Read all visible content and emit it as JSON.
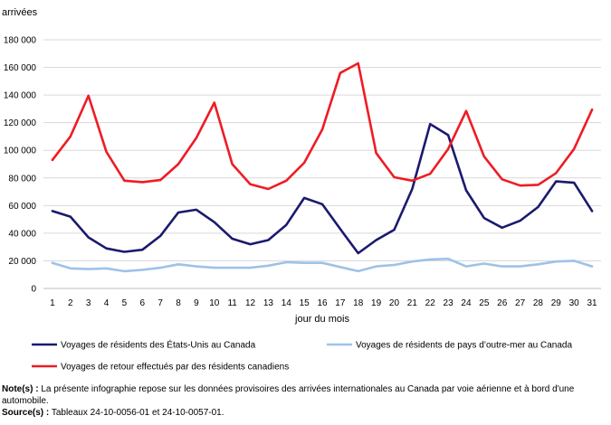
{
  "chart_data": {
    "type": "line",
    "ylabel": "arrivées",
    "xlabel": "jour du mois",
    "x": [
      1,
      2,
      3,
      4,
      5,
      6,
      7,
      8,
      9,
      10,
      11,
      12,
      13,
      14,
      15,
      16,
      17,
      18,
      19,
      20,
      21,
      22,
      23,
      24,
      25,
      26,
      27,
      28,
      29,
      30,
      31
    ],
    "ylim": [
      0,
      180000
    ],
    "yticks": [
      0,
      20000,
      40000,
      60000,
      80000,
      100000,
      120000,
      140000,
      160000,
      180000
    ],
    "ytick_labels": [
      "0",
      "20 000",
      "40 000",
      "60 000",
      "80 000",
      "100 000",
      "120 000",
      "140 000",
      "160 000",
      "180 000"
    ],
    "grid": true,
    "legend_position": "bottom",
    "series": [
      {
        "name": "Voyages de résidents des États-Unis au Canada",
        "color": "#1a1a6e",
        "values": [
          56000,
          52000,
          37000,
          29000,
          26500,
          28000,
          38000,
          55000,
          57000,
          48000,
          36000,
          32000,
          35000,
          46000,
          65500,
          61000,
          43000,
          25500,
          35000,
          42500,
          72000,
          119000,
          111000,
          71000,
          51000,
          44000,
          49000,
          59000,
          77500,
          76500,
          56000
        ]
      },
      {
        "name": "Voyages de résidents de pays d’outre-mer au Canada",
        "color": "#9dc3e6",
        "values": [
          18500,
          14500,
          14000,
          14500,
          12500,
          13500,
          15000,
          17500,
          16000,
          15000,
          15000,
          15000,
          16500,
          19000,
          18500,
          18500,
          15500,
          12500,
          16000,
          17000,
          19500,
          21000,
          21500,
          16000,
          18000,
          16000,
          16000,
          17500,
          19500,
          20000,
          16000
        ]
      },
      {
        "name": "Voyages de retour effectués par des résidents canadiens",
        "color": "#ee1c25",
        "values": [
          93000,
          110000,
          139500,
          99000,
          78000,
          77000,
          78500,
          90000,
          109000,
          134500,
          90000,
          75500,
          72000,
          78000,
          91000,
          115000,
          156000,
          163000,
          98000,
          80500,
          78000,
          83000,
          101000,
          128500,
          95500,
          79000,
          74500,
          75000,
          83500,
          101000,
          129500
        ]
      }
    ]
  },
  "notes": {
    "note_label": "Note(s) :",
    "note_text": " La présente infographie repose sur les données provisoires des arrivées internationales au Canada par voie aérienne et à bord d'une automobile.",
    "source_label": "Source(s) :",
    "source_text": " Tableaux 24-10-0056-01 et 24-10-0057-01."
  }
}
